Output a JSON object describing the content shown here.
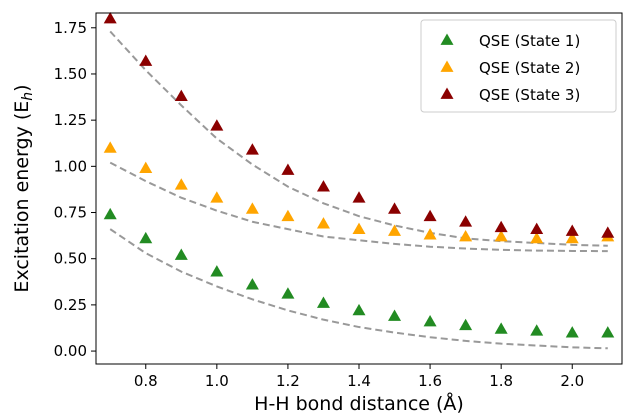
{
  "chart_data": {
    "type": "scatter",
    "xlabel": "H-H bond distance (Å)",
    "ylabel_main": "Excitation energy (E",
    "ylabel_sub": "h",
    "ylabel_close": ")",
    "xlim": [
      0.66,
      2.14
    ],
    "ylim": [
      -0.07,
      1.83
    ],
    "xticks": [
      "0.8",
      "1.0",
      "1.2",
      "1.4",
      "1.6",
      "1.8",
      "2.0"
    ],
    "xtick_values": [
      0.8,
      1.0,
      1.2,
      1.4,
      1.6,
      1.8,
      2.0
    ],
    "yticks": [
      "0.00",
      "0.25",
      "0.50",
      "0.75",
      "1.00",
      "1.25",
      "1.50",
      "1.75"
    ],
    "ytick_values": [
      0.0,
      0.25,
      0.5,
      0.75,
      1.0,
      1.25,
      1.5,
      1.75
    ],
    "legend_position": "top-right",
    "x": [
      0.7,
      0.8,
      0.9,
      1.0,
      1.1,
      1.2,
      1.3,
      1.4,
      1.5,
      1.6,
      1.7,
      1.8,
      1.9,
      2.0,
      2.1
    ],
    "series": [
      {
        "name": "QSE (State 1)",
        "color": "#228b22",
        "marker": "triangle",
        "values": [
          0.74,
          0.61,
          0.52,
          0.43,
          0.36,
          0.31,
          0.26,
          0.22,
          0.19,
          0.16,
          0.14,
          0.12,
          0.11,
          0.1,
          0.1
        ]
      },
      {
        "name": "QSE (State 2)",
        "color": "#ffa500",
        "marker": "triangle",
        "values": [
          1.1,
          0.99,
          0.9,
          0.83,
          0.77,
          0.73,
          0.69,
          0.66,
          0.65,
          0.63,
          0.62,
          0.62,
          0.61,
          0.61,
          0.62
        ]
      },
      {
        "name": "QSE (State 3)",
        "color": "#8b0000",
        "marker": "triangle",
        "values": [
          1.8,
          1.57,
          1.38,
          1.22,
          1.09,
          0.98,
          0.89,
          0.83,
          0.77,
          0.73,
          0.7,
          0.67,
          0.66,
          0.65,
          0.64
        ]
      }
    ],
    "reference_curves": {
      "style": "dashed",
      "color": "#999999",
      "x": [
        0.7,
        0.8,
        0.9,
        1.0,
        1.1,
        1.2,
        1.3,
        1.4,
        1.5,
        1.6,
        1.7,
        1.8,
        1.9,
        2.0,
        2.1
      ],
      "curves": [
        [
          0.66,
          0.53,
          0.43,
          0.35,
          0.28,
          0.22,
          0.17,
          0.13,
          0.1,
          0.075,
          0.055,
          0.04,
          0.03,
          0.02,
          0.015
        ],
        [
          1.02,
          0.92,
          0.83,
          0.76,
          0.7,
          0.66,
          0.62,
          0.6,
          0.58,
          0.565,
          0.555,
          0.548,
          0.544,
          0.542,
          0.541
        ],
        [
          1.73,
          1.52,
          1.33,
          1.15,
          1.01,
          0.89,
          0.8,
          0.73,
          0.68,
          0.64,
          0.61,
          0.595,
          0.585,
          0.575,
          0.57
        ]
      ]
    }
  }
}
